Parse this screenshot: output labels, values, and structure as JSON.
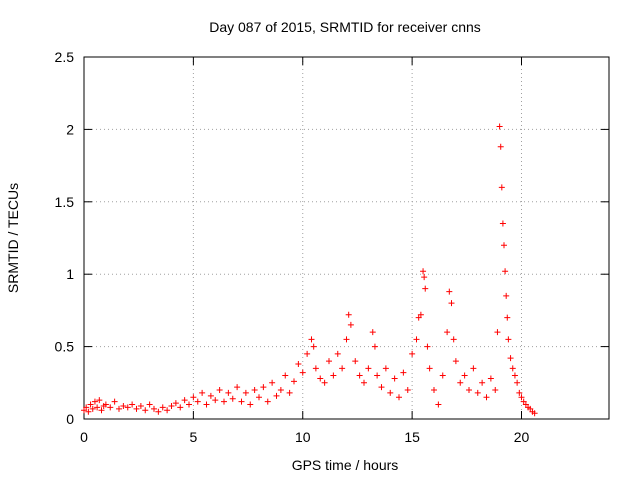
{
  "chart_data": {
    "type": "scatter",
    "title": "Day 087 of 2015, SRMTID for receiver cnns",
    "xlabel": "GPS time / hours",
    "ylabel": "SRMTID / TECUs",
    "xlim": [
      0,
      24
    ],
    "ylim": [
      0,
      2.5
    ],
    "x_ticks": [
      0,
      5,
      10,
      15,
      20
    ],
    "y_ticks": [
      0,
      0.5,
      1,
      1.5,
      2,
      2.5
    ],
    "x_tick_labels": [
      "0",
      "5",
      "10",
      "15",
      "20"
    ],
    "y_tick_labels": [
      "0",
      "0.5",
      "1",
      "1.5",
      "2",
      "2.5"
    ],
    "grid": true,
    "marker": "+",
    "series": [
      {
        "color": "#ff0000",
        "x": [
          0.0,
          0.1,
          0.2,
          0.3,
          0.4,
          0.5,
          0.6,
          0.7,
          0.8,
          0.9,
          1.0,
          1.2,
          1.4,
          1.6,
          1.8,
          2.0,
          2.2,
          2.4,
          2.6,
          2.8,
          3.0,
          3.2,
          3.4,
          3.6,
          3.8,
          4.0,
          4.2,
          4.4,
          4.6,
          4.8,
          5.0,
          5.2,
          5.4,
          5.6,
          5.8,
          6.0,
          6.2,
          6.4,
          6.6,
          6.8,
          7.0,
          7.2,
          7.4,
          7.6,
          7.8,
          8.0,
          8.2,
          8.4,
          8.6,
          8.8,
          9.0,
          9.2,
          9.4,
          9.6,
          9.8,
          10.0,
          10.2,
          10.4,
          10.5,
          10.6,
          10.8,
          11.0,
          11.2,
          11.4,
          11.6,
          11.8,
          12.0,
          12.1,
          12.2,
          12.4,
          12.6,
          12.8,
          13.0,
          13.2,
          13.3,
          13.4,
          13.6,
          13.8,
          14.0,
          14.2,
          14.4,
          14.6,
          14.8,
          15.0,
          15.2,
          15.3,
          15.4,
          15.5,
          15.55,
          15.6,
          15.7,
          15.8,
          16.0,
          16.2,
          16.4,
          16.6,
          16.7,
          16.8,
          16.9,
          17.0,
          17.2,
          17.4,
          17.6,
          17.8,
          18.0,
          18.2,
          18.4,
          18.6,
          18.8,
          18.9,
          19.0,
          19.05,
          19.1,
          19.15,
          19.2,
          19.25,
          19.3,
          19.35,
          19.4,
          19.5,
          19.6,
          19.7,
          19.8,
          19.9,
          20.0,
          20.1,
          20.2,
          20.3,
          20.4,
          20.5,
          20.6
        ],
        "y": [
          0.06,
          0.08,
          0.05,
          0.1,
          0.07,
          0.12,
          0.08,
          0.13,
          0.06,
          0.09,
          0.1,
          0.08,
          0.12,
          0.07,
          0.09,
          0.08,
          0.1,
          0.07,
          0.09,
          0.06,
          0.1,
          0.07,
          0.05,
          0.08,
          0.06,
          0.09,
          0.11,
          0.08,
          0.13,
          0.1,
          0.15,
          0.12,
          0.18,
          0.1,
          0.16,
          0.13,
          0.2,
          0.12,
          0.18,
          0.14,
          0.22,
          0.12,
          0.18,
          0.1,
          0.2,
          0.15,
          0.22,
          0.12,
          0.25,
          0.16,
          0.2,
          0.3,
          0.18,
          0.26,
          0.38,
          0.32,
          0.45,
          0.55,
          0.5,
          0.35,
          0.28,
          0.25,
          0.4,
          0.3,
          0.45,
          0.35,
          0.55,
          0.72,
          0.65,
          0.4,
          0.3,
          0.25,
          0.35,
          0.6,
          0.5,
          0.3,
          0.22,
          0.35,
          0.18,
          0.28,
          0.15,
          0.32,
          0.2,
          0.45,
          0.55,
          0.7,
          0.72,
          1.02,
          0.98,
          0.9,
          0.5,
          0.35,
          0.2,
          0.1,
          0.3,
          0.6,
          0.88,
          0.8,
          0.55,
          0.4,
          0.25,
          0.3,
          0.2,
          0.35,
          0.18,
          0.25,
          0.15,
          0.28,
          0.2,
          0.6,
          2.02,
          1.88,
          1.6,
          1.35,
          1.2,
          1.02,
          0.85,
          0.7,
          0.55,
          0.42,
          0.35,
          0.3,
          0.25,
          0.18,
          0.15,
          0.12,
          0.1,
          0.08,
          0.07,
          0.05,
          0.04
        ]
      }
    ]
  }
}
